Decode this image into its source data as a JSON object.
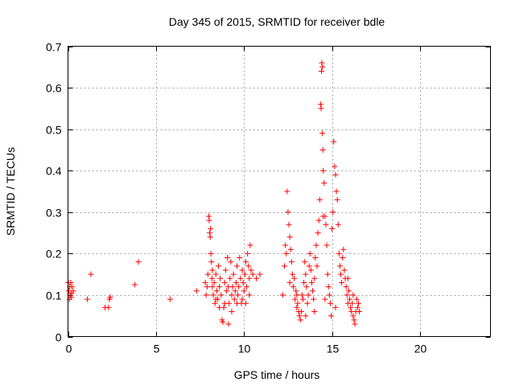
{
  "chart_data": {
    "type": "scatter",
    "title": "Day 345 of 2015, SRMTID for receiver bdle",
    "xlabel": "GPS time / hours",
    "ylabel": "SRMTID / TECUs",
    "xlim": [
      0,
      24
    ],
    "ylim": [
      0,
      0.7
    ],
    "xticks": [
      0,
      5,
      10,
      15,
      20
    ],
    "yticks": [
      0,
      0.1,
      0.2,
      0.3,
      0.4,
      0.5,
      0.6,
      0.7
    ],
    "xtick_labels": [
      "0",
      "5",
      "10",
      "15",
      "20"
    ],
    "ytick_labels": [
      "0",
      "0.1",
      "0.2",
      "0.3",
      "0.4",
      "0.5",
      "0.6",
      "0.7"
    ],
    "grid": true,
    "marker": "+",
    "color": "#ff0000",
    "series": [
      {
        "name": "SRMTID",
        "points": [
          [
            0.02,
            0.13
          ],
          [
            0.05,
            0.11
          ],
          [
            0.08,
            0.09
          ],
          [
            0.1,
            0.12
          ],
          [
            0.12,
            0.1
          ],
          [
            0.15,
            0.13
          ],
          [
            0.18,
            0.095
          ],
          [
            0.2,
            0.105
          ],
          [
            0.22,
            0.12
          ],
          [
            0.3,
            0.11
          ],
          [
            1.1,
            0.09
          ],
          [
            1.3,
            0.15
          ],
          [
            2.1,
            0.07
          ],
          [
            2.3,
            0.07
          ],
          [
            2.35,
            0.09
          ],
          [
            2.4,
            0.095
          ],
          [
            3.8,
            0.125
          ],
          [
            4.0,
            0.18
          ],
          [
            5.8,
            0.09
          ],
          [
            7.3,
            0.11
          ],
          [
            7.8,
            0.13
          ],
          [
            7.85,
            0.1
          ],
          [
            7.9,
            0.12
          ],
          [
            7.95,
            0.15
          ],
          [
            8.0,
            0.29
          ],
          [
            8.02,
            0.28
          ],
          [
            8.05,
            0.25
          ],
          [
            8.08,
            0.24
          ],
          [
            8.1,
            0.26
          ],
          [
            8.12,
            0.2
          ],
          [
            8.15,
            0.18
          ],
          [
            8.18,
            0.14
          ],
          [
            8.2,
            0.12
          ],
          [
            8.25,
            0.1
          ],
          [
            8.3,
            0.13
          ],
          [
            8.35,
            0.08
          ],
          [
            8.4,
            0.15
          ],
          [
            8.45,
            0.11
          ],
          [
            8.5,
            0.09
          ],
          [
            8.55,
            0.17
          ],
          [
            8.6,
            0.12
          ],
          [
            8.65,
            0.14
          ],
          [
            8.7,
            0.1
          ],
          [
            8.75,
            0.04
          ],
          [
            8.8,
            0.035
          ],
          [
            8.85,
            0.07
          ],
          [
            8.9,
            0.13
          ],
          [
            8.95,
            0.16
          ],
          [
            9.0,
            0.11
          ],
          [
            9.05,
            0.19
          ],
          [
            9.1,
            0.12
          ],
          [
            9.12,
            0.03
          ],
          [
            9.15,
            0.08
          ],
          [
            9.2,
            0.14
          ],
          [
            9.25,
            0.18
          ],
          [
            9.3,
            0.1
          ],
          [
            9.35,
            0.12
          ],
          [
            9.4,
            0.15
          ],
          [
            9.45,
            0.09
          ],
          [
            9.5,
            0.11
          ],
          [
            9.55,
            0.13
          ],
          [
            9.6,
            0.17
          ],
          [
            9.65,
            0.1
          ],
          [
            9.7,
            0.12
          ],
          [
            9.75,
            0.19
          ],
          [
            9.8,
            0.14
          ],
          [
            9.85,
            0.08
          ],
          [
            9.9,
            0.16
          ],
          [
            9.95,
            0.13
          ],
          [
            10.0,
            0.11
          ],
          [
            10.05,
            0.15
          ],
          [
            10.1,
            0.18
          ],
          [
            10.15,
            0.12
          ],
          [
            10.2,
            0.2
          ],
          [
            10.25,
            0.17
          ],
          [
            10.3,
            0.14
          ],
          [
            10.35,
            0.22
          ],
          [
            10.4,
            0.16
          ],
          [
            10.5,
            0.15
          ],
          [
            10.7,
            0.14
          ],
          [
            10.9,
            0.15
          ],
          [
            8.2,
            0.16
          ],
          [
            8.4,
            0.09
          ],
          [
            8.6,
            0.07
          ],
          [
            8.9,
            0.08
          ],
          [
            9.3,
            0.06
          ],
          [
            9.6,
            0.08
          ],
          [
            9.9,
            0.09
          ],
          [
            10.1,
            0.08
          ],
          [
            10.3,
            0.1
          ],
          [
            12.2,
            0.1
          ],
          [
            12.3,
            0.17
          ],
          [
            12.35,
            0.22
          ],
          [
            12.4,
            0.2
          ],
          [
            12.45,
            0.35
          ],
          [
            12.5,
            0.3
          ],
          [
            12.55,
            0.27
          ],
          [
            12.6,
            0.24
          ],
          [
            12.65,
            0.21
          ],
          [
            12.7,
            0.18
          ],
          [
            12.75,
            0.15
          ],
          [
            12.8,
            0.12
          ],
          [
            12.85,
            0.14
          ],
          [
            12.9,
            0.09
          ],
          [
            12.95,
            0.11
          ],
          [
            13.0,
            0.07
          ],
          [
            13.05,
            0.08
          ],
          [
            13.1,
            0.06
          ],
          [
            13.15,
            0.05
          ],
          [
            13.2,
            0.04
          ],
          [
            13.25,
            0.06
          ],
          [
            13.3,
            0.1
          ],
          [
            13.35,
            0.09
          ],
          [
            13.4,
            0.13
          ],
          [
            13.45,
            0.18
          ],
          [
            13.5,
            0.15
          ],
          [
            13.55,
            0.12
          ],
          [
            13.6,
            0.08
          ],
          [
            13.65,
            0.1
          ],
          [
            13.7,
            0.17
          ],
          [
            13.75,
            0.2
          ],
          [
            13.8,
            0.16
          ],
          [
            13.85,
            0.13
          ],
          [
            13.9,
            0.11
          ],
          [
            13.95,
            0.09
          ],
          [
            14.0,
            0.14
          ],
          [
            14.05,
            0.19
          ],
          [
            14.1,
            0.22
          ],
          [
            14.15,
            0.17
          ],
          [
            14.2,
            0.25
          ],
          [
            14.25,
            0.28
          ],
          [
            14.3,
            0.33
          ],
          [
            14.35,
            0.56
          ],
          [
            14.38,
            0.55
          ],
          [
            14.4,
            0.64
          ],
          [
            14.42,
            0.66
          ],
          [
            14.45,
            0.65
          ],
          [
            14.48,
            0.45
          ],
          [
            14.5,
            0.4
          ],
          [
            14.55,
            0.37
          ],
          [
            14.6,
            0.29
          ],
          [
            14.65,
            0.27
          ],
          [
            14.7,
            0.22
          ],
          [
            14.75,
            0.15
          ],
          [
            14.8,
            0.12
          ],
          [
            14.85,
            0.1
          ],
          [
            14.9,
            0.08
          ],
          [
            14.95,
            0.05
          ],
          [
            15.0,
            0.26
          ],
          [
            15.05,
            0.3
          ],
          [
            15.1,
            0.47
          ],
          [
            15.15,
            0.41
          ],
          [
            15.2,
            0.39
          ],
          [
            15.25,
            0.35
          ],
          [
            15.3,
            0.33
          ],
          [
            15.35,
            0.27
          ],
          [
            15.4,
            0.2
          ],
          [
            15.45,
            0.17
          ],
          [
            15.5,
            0.15
          ],
          [
            15.55,
            0.13
          ],
          [
            15.6,
            0.19
          ],
          [
            15.65,
            0.21
          ],
          [
            15.7,
            0.16
          ],
          [
            15.75,
            0.14
          ],
          [
            15.8,
            0.12
          ],
          [
            15.85,
            0.1
          ],
          [
            15.9,
            0.08
          ],
          [
            15.95,
            0.11
          ],
          [
            16.0,
            0.09
          ],
          [
            16.05,
            0.07
          ],
          [
            16.1,
            0.06
          ],
          [
            16.15,
            0.08
          ],
          [
            16.2,
            0.05
          ],
          [
            16.25,
            0.04
          ],
          [
            16.3,
            0.03
          ],
          [
            16.35,
            0.06
          ],
          [
            16.4,
            0.09
          ],
          [
            16.45,
            0.07
          ],
          [
            16.5,
            0.08
          ],
          [
            16.55,
            0.06
          ],
          [
            14.45,
            0.49
          ],
          [
            14.5,
            0.29
          ],
          [
            13.0,
            0.1
          ],
          [
            13.5,
            0.05
          ],
          [
            14.0,
            0.06
          ],
          [
            14.6,
            0.09
          ],
          [
            15.2,
            0.07
          ],
          [
            15.9,
            0.14
          ],
          [
            16.2,
            0.1
          ],
          [
            12.6,
            0.13
          ]
        ]
      }
    ]
  }
}
